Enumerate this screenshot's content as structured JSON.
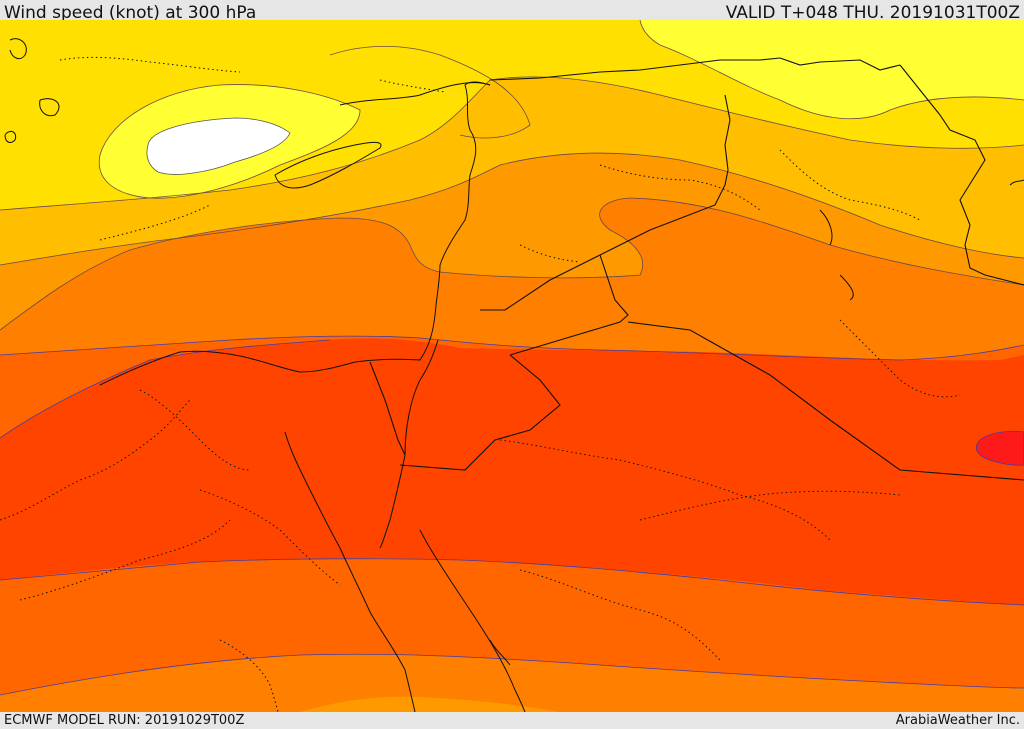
{
  "header": {
    "title": "Wind speed (knot) at 300 hPa",
    "valid": "VALID T+048 THU. 20191031T00Z"
  },
  "footer": {
    "model_run": "ECMWF MODEL RUN: 20191029T00Z",
    "credit": "ArabiaWeather Inc."
  },
  "palette": {
    "white": "#ffffff",
    "yellow_light": "#ffff33",
    "yellow": "#ffe000",
    "gold": "#ffbf00",
    "orange_light": "#ff9900",
    "orange": "#ff7f00",
    "orange_dark": "#ff6600",
    "red_orange": "#ff4400",
    "red": "#ff1a1a",
    "border_color": "#000000",
    "contour_color": "#7a5a5a",
    "band_contour": "#4a3aa0"
  }
}
